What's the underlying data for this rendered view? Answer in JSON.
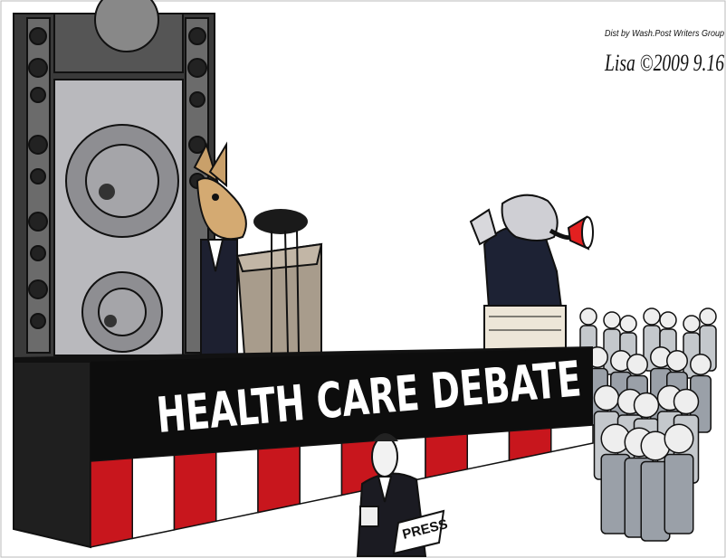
{
  "banner": {
    "text": "HEALTH CARE DEBATE"
  },
  "press_sign": {
    "text": "PRESS"
  },
  "credit": {
    "distributor": "Dist by Wash.Post Writers Group",
    "signature": "Lisa ©2009 9.16"
  }
}
